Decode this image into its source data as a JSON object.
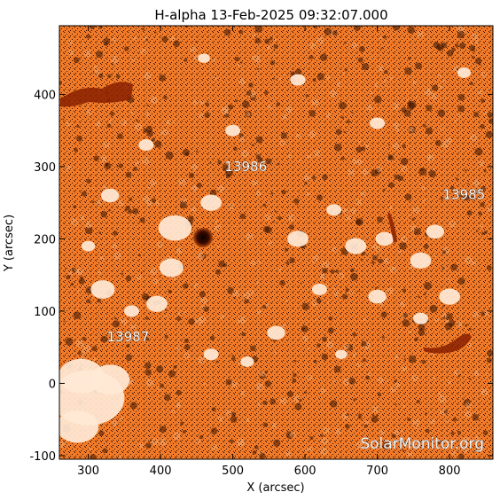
{
  "plot": {
    "title": "H-alpha 13-Feb-2025 09:32:07.000",
    "xlabel": "X (arcsec)",
    "ylabel": "Y (arcsec)",
    "watermark": "SolarMonitor.org",
    "xlim": [
      260,
      860
    ],
    "ylim": [
      -105,
      495
    ],
    "xticks": [
      {
        "value": 300,
        "label": "300"
      },
      {
        "value": 400,
        "label": "400"
      },
      {
        "value": 500,
        "label": "500"
      },
      {
        "value": 600,
        "label": "600"
      },
      {
        "value": 700,
        "label": "700"
      },
      {
        "value": 800,
        "label": "800"
      }
    ],
    "yticks": [
      {
        "value": -100,
        "label": "-100"
      },
      {
        "value": 0,
        "label": "0"
      },
      {
        "value": 100,
        "label": "100"
      },
      {
        "value": 200,
        "label": "200"
      },
      {
        "value": 300,
        "label": "300"
      },
      {
        "value": 400,
        "label": "400"
      }
    ],
    "regions": [
      {
        "label": "13986",
        "x": 518,
        "y": 294
      },
      {
        "label": "13985",
        "x": 820,
        "y": 255
      },
      {
        "label": "13987",
        "x": 355,
        "y": 58
      }
    ],
    "colors": {
      "background": "#f07a28",
      "bright": "#ffe9d6",
      "dark": "#120400",
      "sunspot": "#1a0300"
    }
  }
}
